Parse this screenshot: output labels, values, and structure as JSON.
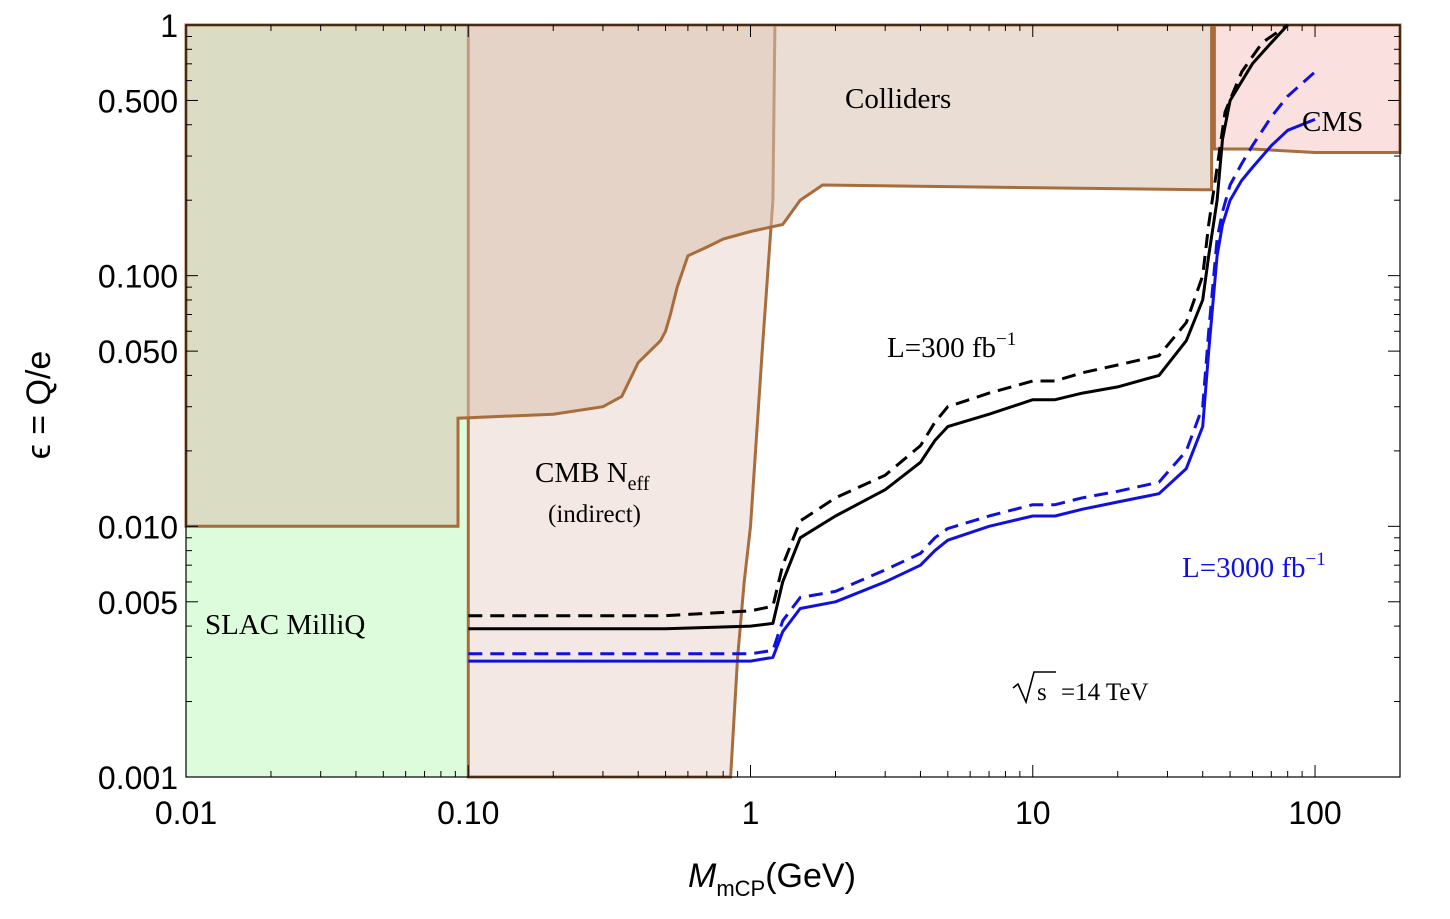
{
  "chart_data": {
    "type": "line",
    "xlabel": "M",
    "xlabel_sub": "mCP",
    "xlabel_unit": "(GeV)",
    "ylabel": "ϵ = Q/e",
    "xscale": "log",
    "yscale": "log",
    "xlim": [
      0.01,
      200
    ],
    "ylim": [
      0.001,
      1
    ],
    "x_ticks": [
      {
        "v": 0.01,
        "label": "0.01"
      },
      {
        "v": 0.1,
        "label": "0.10"
      },
      {
        "v": 1,
        "label": "1"
      },
      {
        "v": 10,
        "label": "10"
      },
      {
        "v": 100,
        "label": "100"
      }
    ],
    "y_ticks": [
      {
        "v": 0.001,
        "label": "0.001"
      },
      {
        "v": 0.005,
        "label": "0.005"
      },
      {
        "v": 0.01,
        "label": "0.010"
      },
      {
        "v": 0.05,
        "label": "0.050"
      },
      {
        "v": 0.1,
        "label": "0.100"
      },
      {
        "v": 0.5,
        "label": "0.500"
      },
      {
        "v": 1,
        "label": "1"
      }
    ],
    "regions": [
      {
        "name": "SLAC MilliQ",
        "fill": "#dcfcdc",
        "points": [
          [
            0.01,
            0.001
          ],
          [
            0.1,
            0.001
          ],
          [
            0.1,
            1
          ],
          [
            0.01,
            1
          ]
        ]
      },
      {
        "name": "CMB Neff (indirect)",
        "fill": "#f3e8e3",
        "stroke": "#a86d3c",
        "points": [
          [
            0.1,
            0.001
          ],
          [
            0.85,
            0.001
          ],
          [
            0.9,
            0.003
          ],
          [
            0.95,
            0.006
          ],
          [
            1.0,
            0.01
          ],
          [
            1.1,
            0.05
          ],
          [
            1.2,
            0.2
          ],
          [
            1.22,
            1
          ],
          [
            0.1,
            1
          ]
        ]
      },
      {
        "name": "Colliders",
        "fill": "#d9c1b0",
        "opacity": 0.55,
        "stroke": "#a86d3c",
        "points": [
          [
            0.01,
            0.01
          ],
          [
            0.092,
            0.01
          ],
          [
            0.092,
            0.027
          ],
          [
            0.2,
            0.028
          ],
          [
            0.3,
            0.03
          ],
          [
            0.35,
            0.033
          ],
          [
            0.4,
            0.045
          ],
          [
            0.48,
            0.055
          ],
          [
            0.5,
            0.06
          ],
          [
            0.52,
            0.07
          ],
          [
            0.55,
            0.09
          ],
          [
            0.6,
            0.12
          ],
          [
            0.7,
            0.13
          ],
          [
            0.8,
            0.14
          ],
          [
            1.0,
            0.15
          ],
          [
            1.3,
            0.16
          ],
          [
            1.5,
            0.2
          ],
          [
            1.8,
            0.23
          ],
          [
            40,
            0.22
          ],
          [
            43,
            0.22
          ],
          [
            43,
            1
          ],
          [
            0.01,
            1
          ]
        ]
      },
      {
        "name": "CMS",
        "fill": "#fbe0e0",
        "stroke": "#a86d3c",
        "points": [
          [
            44,
            0.32
          ],
          [
            60,
            0.32
          ],
          [
            100,
            0.31
          ],
          [
            200,
            0.31
          ],
          [
            200,
            1
          ],
          [
            44,
            1
          ]
        ]
      }
    ],
    "series": [
      {
        "name": "L=300 fb⁻¹",
        "color": "#000000",
        "style": "solid",
        "x": [
          0.1,
          0.2,
          0.5,
          1.0,
          1.2,
          1.3,
          1.5,
          2,
          3,
          4,
          4.5,
          5,
          7,
          10,
          12,
          15,
          20,
          28,
          35,
          40,
          42,
          45,
          47,
          50,
          60,
          70,
          80
        ],
        "y": [
          0.0039,
          0.0039,
          0.0039,
          0.004,
          0.0041,
          0.006,
          0.009,
          0.011,
          0.014,
          0.018,
          0.022,
          0.025,
          0.028,
          0.032,
          0.032,
          0.034,
          0.036,
          0.04,
          0.055,
          0.08,
          0.12,
          0.2,
          0.35,
          0.5,
          0.7,
          0.85,
          1.0
        ]
      },
      {
        "name": "L=300 fb⁻¹ (dashed)",
        "color": "#000000",
        "style": "dashed",
        "x": [
          0.1,
          0.2,
          0.5,
          1.0,
          1.2,
          1.3,
          1.5,
          2,
          3,
          4,
          4.5,
          5,
          7,
          10,
          12,
          15,
          20,
          28,
          35,
          40,
          42,
          45,
          48,
          55,
          65,
          80
        ],
        "y": [
          0.0044,
          0.0044,
          0.0044,
          0.0046,
          0.0048,
          0.007,
          0.0105,
          0.013,
          0.016,
          0.021,
          0.026,
          0.03,
          0.034,
          0.038,
          0.038,
          0.041,
          0.044,
          0.048,
          0.065,
          0.1,
          0.16,
          0.27,
          0.45,
          0.65,
          0.85,
          1.0
        ]
      },
      {
        "name": "L=3000 fb⁻¹",
        "color": "#1010e0",
        "style": "solid",
        "x": [
          0.1,
          0.2,
          0.5,
          1.0,
          1.2,
          1.3,
          1.5,
          2,
          3,
          4,
          4.5,
          5,
          7,
          10,
          12,
          15,
          20,
          28,
          35,
          40,
          42,
          45,
          47,
          50,
          55,
          60,
          70,
          80,
          100
        ],
        "y": [
          0.0029,
          0.0029,
          0.0029,
          0.0029,
          0.003,
          0.0038,
          0.0047,
          0.005,
          0.006,
          0.007,
          0.008,
          0.0088,
          0.01,
          0.011,
          0.011,
          0.0117,
          0.0125,
          0.0135,
          0.017,
          0.025,
          0.05,
          0.12,
          0.16,
          0.2,
          0.24,
          0.27,
          0.33,
          0.38,
          0.42
        ]
      },
      {
        "name": "L=3000 fb⁻¹ (dashed)",
        "color": "#1010e0",
        "style": "dashed",
        "x": [
          0.1,
          0.2,
          0.5,
          1.0,
          1.2,
          1.3,
          1.5,
          2,
          3,
          4,
          4.5,
          5,
          7,
          10,
          12,
          15,
          20,
          28,
          35,
          40,
          42,
          45,
          47,
          50,
          55,
          60,
          70,
          80,
          100
        ],
        "y": [
          0.0031,
          0.0031,
          0.0031,
          0.0031,
          0.0032,
          0.0042,
          0.0052,
          0.0055,
          0.0067,
          0.0078,
          0.009,
          0.0098,
          0.011,
          0.0122,
          0.0122,
          0.013,
          0.0138,
          0.015,
          0.02,
          0.03,
          0.06,
          0.14,
          0.18,
          0.23,
          0.28,
          0.33,
          0.43,
          0.52,
          0.65
        ]
      }
    ]
  },
  "annotations": {
    "slac": "SLAC MilliQ",
    "cmb_main": "CMB N",
    "cmb_sub": "eff",
    "cmb_indirect": "(indirect)",
    "colliders": "Colliders",
    "cms": "CMS",
    "l300_main": "L=300 fb",
    "l300_exp": "−1",
    "l3000_main": "L=3000 fb",
    "l3000_exp": "−1",
    "sqrt_s": "s",
    "energy": "=14 TeV"
  },
  "colors": {
    "frame": "#000000",
    "boundary": "#a86d3c",
    "l3000_text": "#1010e0"
  }
}
